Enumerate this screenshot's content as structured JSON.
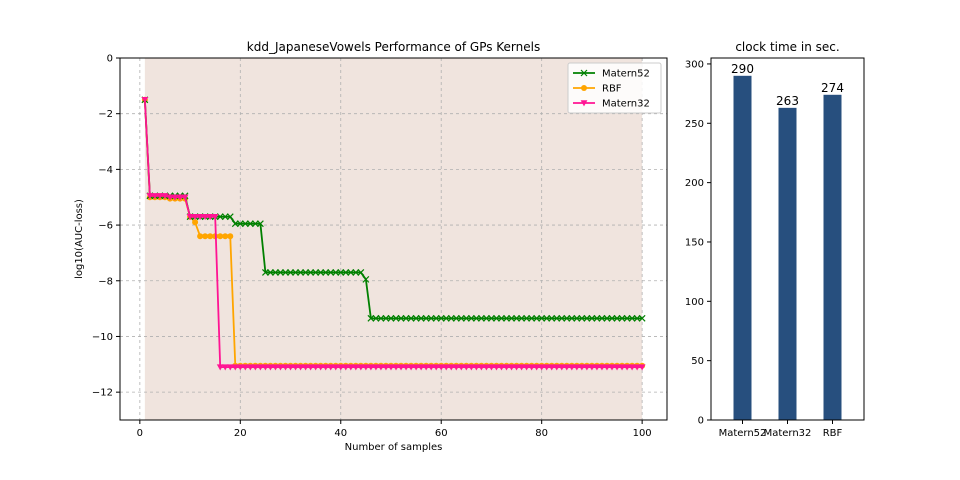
{
  "colors": {
    "matern52": "#008000",
    "rbf": "#ffa500",
    "matern32": "#ff1493",
    "band": "#f0e4de",
    "band_light": "#ffeeee",
    "bar": "#274f7e",
    "grid": "#b0b0b0"
  },
  "chart_data": [
    {
      "type": "line",
      "title": "kdd_JapaneseVowels Performance of GPs Kernels",
      "xlabel": "Number of samples",
      "ylabel": "log10(AUC-loss)",
      "xlim": [
        -3.95,
        104.95
      ],
      "ylim": [
        -13,
        0
      ],
      "xticks": [
        0,
        20,
        40,
        60,
        80,
        100
      ],
      "yticks": [
        0,
        -2,
        -4,
        -6,
        -8,
        -10,
        -12
      ],
      "grid": true,
      "legend_position": "top-right",
      "band": {
        "x_range": [
          1,
          100
        ],
        "y_bottom": -13,
        "y_top": 0,
        "notes": "shaded uncertainty region covering most of the axes"
      },
      "series": [
        {
          "name": "Matern52",
          "marker": "x",
          "color_key": "matern52",
          "segments": [
            {
              "x": [
                1,
                1
              ],
              "y": [
                -1.5,
                -1.5
              ]
            },
            {
              "x": [
                2,
                9
              ],
              "y": [
                -4.95,
                -4.95
              ]
            },
            {
              "x": [
                10,
                18
              ],
              "y": [
                -5.7,
                -5.7
              ]
            },
            {
              "x": [
                19,
                24
              ],
              "y": [
                -5.95,
                -5.95
              ]
            },
            {
              "x": [
                25,
                44
              ],
              "y": [
                -7.7,
                -7.7
              ]
            },
            {
              "x": [
                45,
                45
              ],
              "y": [
                -7.95,
                -7.95
              ]
            },
            {
              "x": [
                46,
                100
              ],
              "y": [
                -9.35,
                -9.35
              ]
            }
          ]
        },
        {
          "name": "RBF",
          "marker": "o",
          "color_key": "rbf",
          "segments": [
            {
              "x": [
                1,
                1
              ],
              "y": [
                -1.5,
                -1.5
              ]
            },
            {
              "x": [
                2,
                5
              ],
              "y": [
                -5.0,
                -5.0
              ]
            },
            {
              "x": [
                6,
                9
              ],
              "y": [
                -5.05,
                -5.05
              ]
            },
            {
              "x": [
                10,
                10
              ],
              "y": [
                -5.7,
                -5.7
              ]
            },
            {
              "x": [
                11,
                11
              ],
              "y": [
                -5.9,
                -5.9
              ]
            },
            {
              "x": [
                12,
                18
              ],
              "y": [
                -6.4,
                -6.4
              ]
            },
            {
              "x": [
                19,
                100
              ],
              "y": [
                -11.05,
                -11.05
              ]
            }
          ]
        },
        {
          "name": "Matern32",
          "marker": "v",
          "color_key": "matern32",
          "segments": [
            {
              "x": [
                1,
                1
              ],
              "y": [
                -1.5,
                -1.5
              ]
            },
            {
              "x": [
                2,
                5
              ],
              "y": [
                -4.95,
                -4.95
              ]
            },
            {
              "x": [
                6,
                9
              ],
              "y": [
                -5.0,
                -5.0
              ]
            },
            {
              "x": [
                10,
                15
              ],
              "y": [
                -5.7,
                -5.7
              ]
            },
            {
              "x": [
                16,
                100
              ],
              "y": [
                -11.1,
                -11.1
              ]
            }
          ]
        }
      ]
    },
    {
      "type": "bar",
      "title": "clock time in sec.",
      "categories": [
        "Matern52",
        "Matern32",
        "RBF"
      ],
      "values": [
        290,
        263,
        274
      ],
      "labels": [
        "290",
        "263",
        "274"
      ],
      "ylim": [
        0,
        305
      ],
      "yticks": [
        0,
        50,
        100,
        150,
        200,
        250,
        300
      ],
      "grid": false
    }
  ]
}
